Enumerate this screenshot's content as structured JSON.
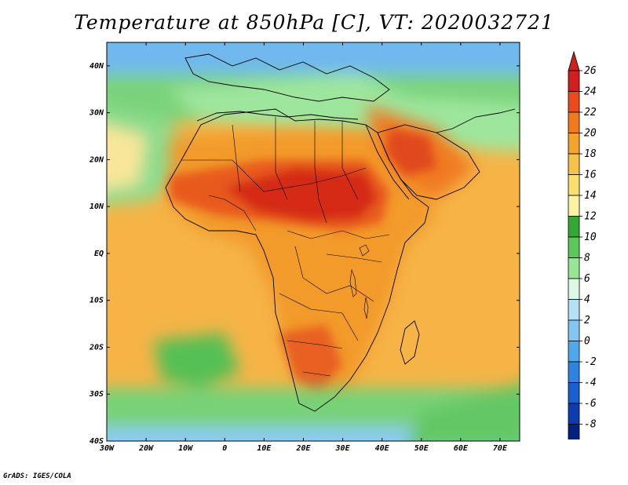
{
  "title": "Temperature at 850hPa [C], VT: 2020032721",
  "credit": "GrADS: IGES/COLA",
  "map": {
    "lon_range": [
      -30,
      75
    ],
    "lat_range": [
      -40,
      45
    ],
    "lat_ticks": [
      {
        "value": 40,
        "label": "40N"
      },
      {
        "value": 30,
        "label": "30N"
      },
      {
        "value": 20,
        "label": "20N"
      },
      {
        "value": 10,
        "label": "10N"
      },
      {
        "value": 0,
        "label": "EQ"
      },
      {
        "value": -10,
        "label": "10S"
      },
      {
        "value": -20,
        "label": "20S"
      },
      {
        "value": -30,
        "label": "30S"
      },
      {
        "value": -40,
        "label": "40S"
      }
    ],
    "lon_ticks": [
      {
        "value": -30,
        "label": "30W"
      },
      {
        "value": -20,
        "label": "20W"
      },
      {
        "value": -10,
        "label": "10W"
      },
      {
        "value": 0,
        "label": "0"
      },
      {
        "value": 10,
        "label": "10E"
      },
      {
        "value": 20,
        "label": "20E"
      },
      {
        "value": 30,
        "label": "30E"
      },
      {
        "value": 40,
        "label": "40E"
      },
      {
        "value": 50,
        "label": "50E"
      },
      {
        "value": 60,
        "label": "60E"
      },
      {
        "value": 70,
        "label": "70E"
      }
    ],
    "colors": {
      "ocean": "#f2d16a",
      "land": "#f5a22e",
      "hot": "#e8541c",
      "hottest": "#d3261a",
      "cool_green": "#64c864",
      "deep_green": "#3cb43c",
      "pale_blue": "#a0d2f0",
      "mid_blue": "#5aa5ea",
      "border": "#000000"
    }
  },
  "colorbar": {
    "levels": [
      "26",
      "24",
      "22",
      "20",
      "18",
      "16",
      "14",
      "12",
      "10",
      "8",
      "6",
      "4",
      "2",
      "0",
      "-2",
      "-4",
      "-6",
      "-8"
    ],
    "colors": [
      "#d11e1e",
      "#ea4a1c",
      "#f27a1e",
      "#f5a22e",
      "#f7c24a",
      "#f9df6e",
      "#fbf3a4",
      "#34a834",
      "#5cc85c",
      "#96e696",
      "#dcf8e6",
      "#b4e0f8",
      "#82c6f4",
      "#50a8ec",
      "#2c84e0",
      "#1a5ed0",
      "#0c3cb0",
      "#06207e"
    ],
    "over_color": "#d11e1e",
    "under_color": "#dcdcf8"
  }
}
